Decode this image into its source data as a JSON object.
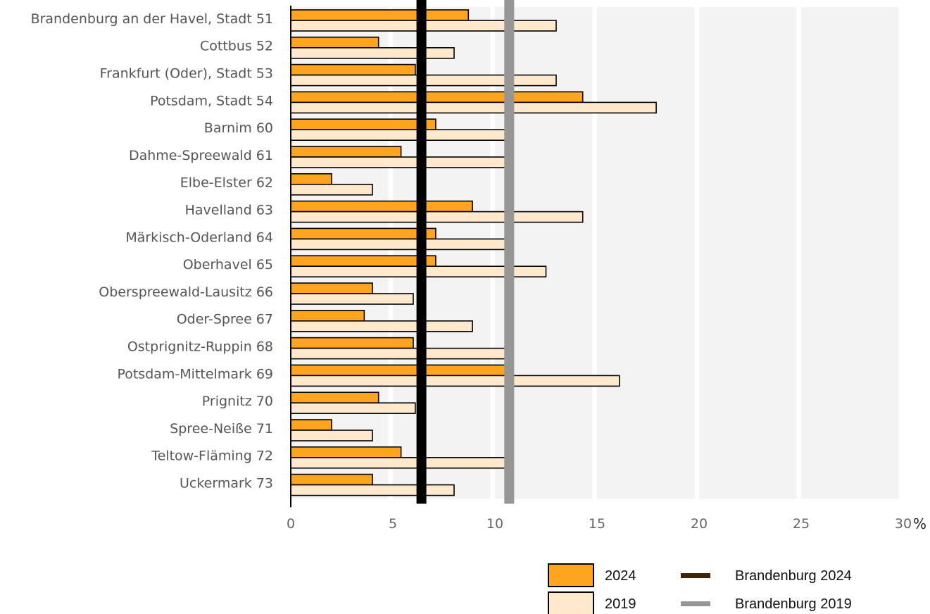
{
  "chart_data": {
    "type": "bar",
    "orientation": "horizontal",
    "categories": [
      "Brandenburg an der Havel, Stadt 51",
      "Cottbus 52",
      "Frankfurt (Oder), Stadt 53",
      "Potsdam, Stadt 54",
      "Barnim 60",
      "Dahme-Spreewald 61",
      "Elbe-Elster 62",
      "Havelland 63",
      "Märkisch-Oderland 64",
      "Oberhavel 65",
      "Oberspreewald-Lausitz 66",
      "Oder-Spree 67",
      "Ostprignitz-Ruppin 68",
      "Potsdam-Mittelmark 69",
      "Prignitz 70",
      "Spree-Neiße 71",
      "Teltow-Fläming 72",
      "Uckermark 73"
    ],
    "series": [
      {
        "name": "2024",
        "color": "#FFA41E",
        "values": [
          8.7,
          4.3,
          6.1,
          14.3,
          7.1,
          5.4,
          2.0,
          8.9,
          7.1,
          7.1,
          4.0,
          3.6,
          6.0,
          10.5,
          4.3,
          2.0,
          5.4,
          4.0
        ]
      },
      {
        "name": "2019",
        "color": "#FFE9CC",
        "values": [
          13.0,
          8.0,
          13.0,
          17.9,
          10.5,
          10.5,
          4.0,
          14.3,
          10.5,
          12.5,
          6.0,
          8.9,
          10.9,
          16.1,
          6.1,
          4.0,
          10.5,
          8.0
        ]
      }
    ],
    "reference_lines": [
      {
        "name": "Brandenburg 2024",
        "value": 6.4,
        "color": "#000000"
      },
      {
        "name": "Brandenburg 2019",
        "value": 10.7,
        "color": "#969696"
      }
    ],
    "xlim": [
      0,
      30
    ],
    "xticks": [
      "0",
      "5",
      "10",
      "15",
      "20",
      "25",
      "30"
    ],
    "x_unit": "%",
    "grid": "alternating vertical bands",
    "legend": {
      "placement": "bottom-right",
      "entries": [
        {
          "label": "2024",
          "kind": "box",
          "color": "#FFA41E"
        },
        {
          "label": "2019",
          "kind": "box",
          "color": "#FFE9CC"
        },
        {
          "label": "Brandenburg 2024",
          "kind": "line",
          "color": "#3D2607"
        },
        {
          "label": "Brandenburg 2019",
          "kind": "line",
          "color": "#969696"
        }
      ]
    }
  }
}
